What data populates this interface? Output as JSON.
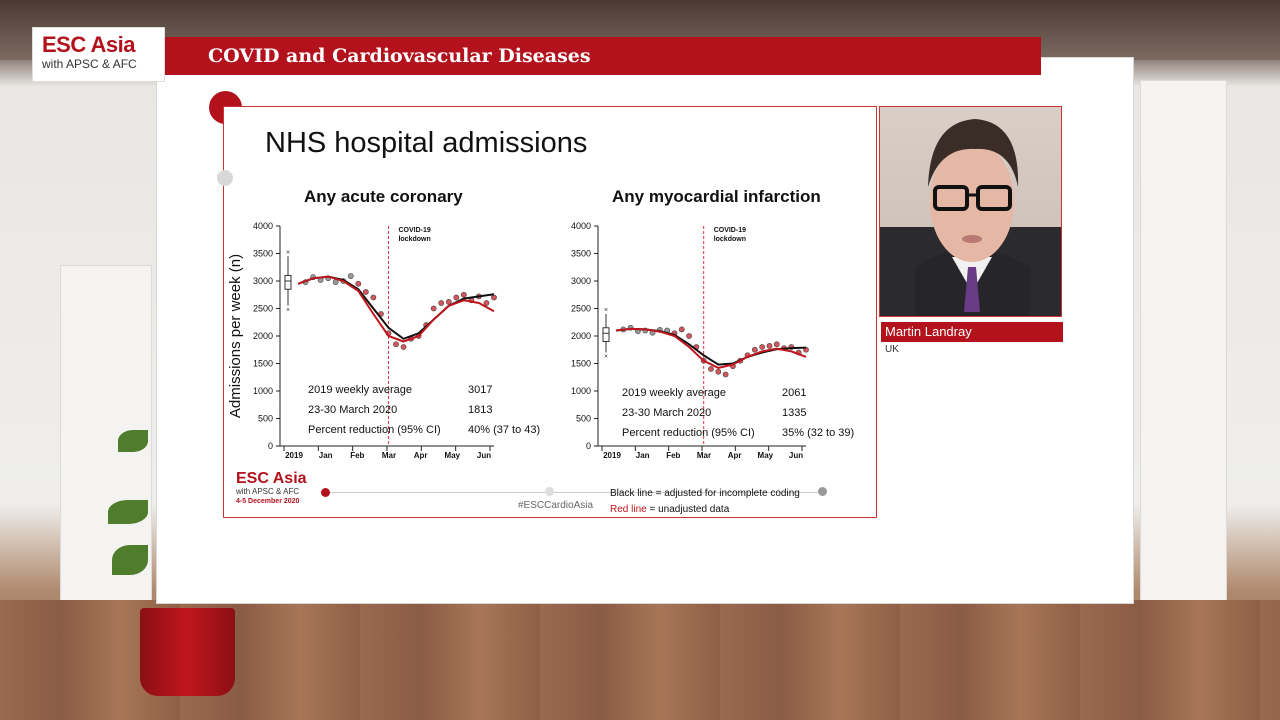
{
  "branding": {
    "logo_main": "ESC Asia",
    "logo_sub": "with APSC & AFC",
    "banner_title": "COVID and Cardiovascular Diseases",
    "slide_footer_date": "4-5 December 2020",
    "hashtag": "#ESCCardioAsia"
  },
  "speaker": {
    "name": "Martin Landray",
    "country": "UK"
  },
  "slide": {
    "title": "NHS hospital admissions",
    "legend_black": "Black line = adjusted for incomplete coding",
    "legend_red_label": "Red line",
    "legend_red_text": " = unadjusted data"
  },
  "colors": {
    "brand_red": "#b3121d",
    "adjusted_line": "#111111",
    "unadjusted_line": "#c0161d",
    "lockdown_line": "#d9363e"
  },
  "chart_data": [
    {
      "type": "line",
      "title": "Any acute coronary",
      "ylabel": "Admissions per week (n)",
      "ylim": [
        0,
        4000
      ],
      "yticks": [
        0,
        500,
        1000,
        1500,
        2000,
        2500,
        3000,
        3500,
        4000
      ],
      "x_tick_labels": [
        "2019",
        "Jan",
        "Feb",
        "Mar",
        "Apr",
        "May",
        "Jun"
      ],
      "x_week_range": [
        0,
        26
      ],
      "annotation": "COVID-19\nlockdown",
      "lockdown_week": 12,
      "box_2019": {
        "min": 2550,
        "q1": 2850,
        "median": 3000,
        "q3": 3100,
        "max": 3450
      },
      "series": [
        {
          "name": "Black line = adjusted for incomplete coding",
          "weeks": [
            0,
            2,
            4,
            6,
            8,
            10,
            12,
            14,
            16,
            18,
            20,
            22,
            24,
            26
          ],
          "values": [
            2950,
            3050,
            3080,
            3020,
            2850,
            2500,
            2150,
            1950,
            2050,
            2300,
            2550,
            2680,
            2720,
            2760
          ]
        },
        {
          "name": "unadjusted data",
          "weeks": [
            0,
            2,
            4,
            6,
            8,
            10,
            12,
            14,
            16,
            18,
            20,
            22,
            24,
            26
          ],
          "values": [
            2950,
            3050,
            3080,
            3000,
            2820,
            2400,
            2000,
            1900,
            2000,
            2300,
            2550,
            2650,
            2600,
            2450
          ]
        }
      ],
      "points": {
        "weeks": [
          1,
          2,
          3,
          4,
          5,
          6,
          7,
          8,
          9,
          10,
          11,
          12,
          13,
          14,
          15,
          16,
          17,
          18,
          19,
          20,
          21,
          22,
          23,
          24,
          25,
          26
        ],
        "values": [
          2980,
          3070,
          3020,
          3050,
          2980,
          3000,
          3090,
          2950,
          2800,
          2700,
          2400,
          2050,
          1850,
          1800,
          1950,
          2000,
          2200,
          2500,
          2600,
          2620,
          2700,
          2750,
          2650,
          2720,
          2600,
          2700
        ]
      },
      "table": [
        {
          "label": "2019 weekly average",
          "value": "3017"
        },
        {
          "label": "23-30 March 2020",
          "value": "1813"
        },
        {
          "label": "Percent reduction (95% CI)",
          "value": "40% (37 to 43)"
        }
      ]
    },
    {
      "type": "line",
      "title": "Any myocardial infarction",
      "ylabel": "",
      "ylim": [
        0,
        4000
      ],
      "yticks": [
        0,
        500,
        1000,
        1500,
        2000,
        2500,
        3000,
        3500,
        4000
      ],
      "x_tick_labels": [
        "2019",
        "Jan",
        "Feb",
        "Mar",
        "Apr",
        "May",
        "Jun"
      ],
      "x_week_range": [
        0,
        26
      ],
      "annotation": "COVID-19\nlockdown",
      "lockdown_week": 12,
      "box_2019": {
        "min": 1700,
        "q1": 1900,
        "median": 2050,
        "q3": 2150,
        "max": 2400
      },
      "series": [
        {
          "name": "Black line = adjusted for incomplete coding",
          "weeks": [
            0,
            2,
            4,
            6,
            8,
            10,
            12,
            14,
            16,
            18,
            20,
            22,
            24,
            26
          ],
          "values": [
            2100,
            2130,
            2120,
            2090,
            2020,
            1850,
            1650,
            1480,
            1500,
            1620,
            1700,
            1760,
            1780,
            1790
          ]
        },
        {
          "name": "unadjusted data",
          "weeks": [
            0,
            2,
            4,
            6,
            8,
            10,
            12,
            14,
            16,
            18,
            20,
            22,
            24,
            26
          ],
          "values": [
            2100,
            2130,
            2120,
            2080,
            2000,
            1800,
            1550,
            1420,
            1480,
            1620,
            1720,
            1770,
            1720,
            1620
          ]
        }
      ],
      "points": {
        "weeks": [
          1,
          2,
          3,
          4,
          5,
          6,
          7,
          8,
          9,
          10,
          11,
          12,
          13,
          14,
          15,
          16,
          17,
          18,
          19,
          20,
          21,
          22,
          23,
          24,
          25,
          26
        ],
        "values": [
          2120,
          2150,
          2090,
          2100,
          2060,
          2110,
          2100,
          2050,
          2120,
          2000,
          1800,
          1550,
          1400,
          1350,
          1300,
          1450,
          1550,
          1650,
          1750,
          1800,
          1820,
          1850,
          1780,
          1800,
          1700,
          1750
        ]
      },
      "table": [
        {
          "label": "2019 weekly average",
          "value": "2061"
        },
        {
          "label": "23-30 March 2020",
          "value": "1335"
        },
        {
          "label": "Percent reduction (95% CI)",
          "value": "35% (32 to 39)"
        }
      ]
    }
  ]
}
